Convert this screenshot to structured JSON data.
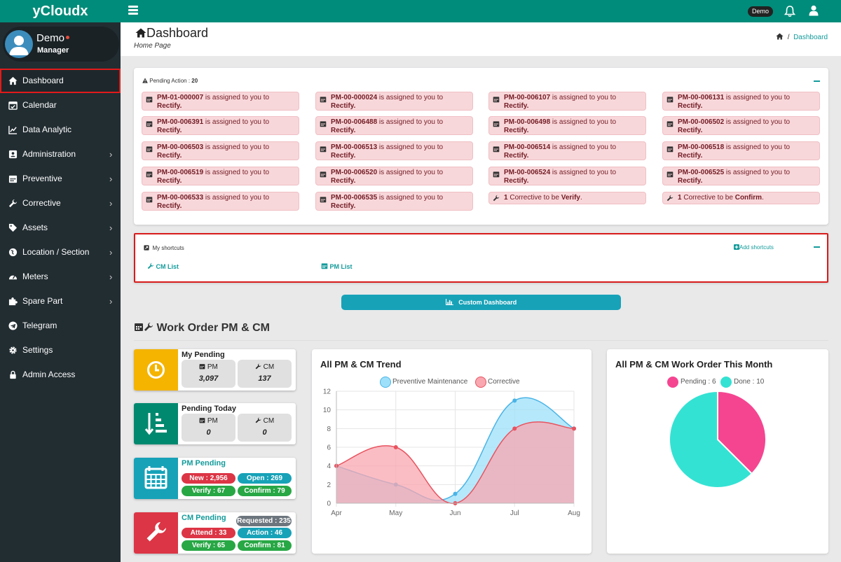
{
  "app": {
    "brand": "yCloudx",
    "demo_badge": "Demo"
  },
  "profile": {
    "name": "Demo",
    "role": "Manager"
  },
  "sidebar": {
    "items": [
      {
        "label": "Dashboard",
        "icon": "home-icon",
        "submenu": false,
        "active": true
      },
      {
        "label": "Calendar",
        "icon": "calendar-check-icon",
        "submenu": false
      },
      {
        "label": "Data Analytic",
        "icon": "line-chart-icon",
        "submenu": false
      },
      {
        "label": "Administration",
        "icon": "id-card-icon",
        "submenu": true
      },
      {
        "label": "Preventive",
        "icon": "calendar-icon",
        "submenu": true
      },
      {
        "label": "Corrective",
        "icon": "wrench-icon",
        "submenu": true
      },
      {
        "label": "Assets",
        "icon": "tag-icon",
        "submenu": true
      },
      {
        "label": "Location / Section",
        "icon": "globe-icon",
        "submenu": true
      },
      {
        "label": "Meters",
        "icon": "gauge-icon",
        "submenu": true
      },
      {
        "label": "Spare Part",
        "icon": "puzzle-icon",
        "submenu": true
      },
      {
        "label": "Telegram",
        "icon": "telegram-icon",
        "submenu": false
      },
      {
        "label": "Settings",
        "icon": "gear-icon",
        "submenu": false
      },
      {
        "label": "Admin Access",
        "icon": "lock-icon",
        "submenu": false
      }
    ]
  },
  "header": {
    "title": "Dashboard",
    "subtitle": "Home Page",
    "breadcrumb_sep": "/",
    "breadcrumb_current": "Dashboard"
  },
  "pending": {
    "label": "Pending Action : ",
    "count": "20",
    "assigned_suffix": " is assigned to you to",
    "rectify": "Rectify.",
    "items": [
      "PM-01-000007",
      "PM-00-000024",
      "PM-00-006107",
      "PM-00-006131",
      "PM-00-006391",
      "PM-00-006488",
      "PM-00-006498",
      "PM-00-006502",
      "PM-00-006503",
      "PM-00-006513",
      "PM-00-006514",
      "PM-00-006518",
      "PM-00-006519",
      "PM-00-006520",
      "PM-00-006524",
      "PM-00-006525",
      "PM-00-006533",
      "PM-00-006535"
    ],
    "corrective_verify": {
      "count": "1",
      "text": " Corrective to be ",
      "action": "Verify",
      "end": "."
    },
    "corrective_confirm": {
      "count": "1",
      "text": " Corrective to be ",
      "action": "Confirm",
      "end": "."
    }
  },
  "shortcuts": {
    "title": "My shortcuts",
    "add_label": "Add shortcuts",
    "items": [
      {
        "label": "CM List",
        "icon": "wrench-icon"
      },
      {
        "label": "PM List",
        "icon": "calendar-icon"
      }
    ]
  },
  "custom_dashboard": {
    "label": "Custom Dashboard"
  },
  "work_order": {
    "title": "Work Order PM & CM"
  },
  "stats": {
    "my_pending": {
      "title": "My Pending",
      "pm_label": "PM",
      "pm_value": "3,097",
      "cm_label": "CM",
      "cm_value": "137",
      "color": "#f4b400"
    },
    "pending_today": {
      "title": "Pending Today",
      "pm_label": "PM",
      "pm_value": "0",
      "cm_label": "CM",
      "cm_value": "0",
      "color": "#00896f"
    },
    "pm_pending": {
      "title": "PM Pending",
      "new": "New : 2,956",
      "open": "Open : 269",
      "verify": "Verify : 67",
      "confirm": "Confirm : 79",
      "color": "#17a2b8"
    },
    "cm_pending": {
      "title": "CM Pending",
      "requested": "Requested : 235",
      "attend": "Attend : 33",
      "action": "Action : 46",
      "verify": "Verify : 65",
      "confirm": "Confirm : 81",
      "color": "#dc3545"
    }
  },
  "chart_data": [
    {
      "type": "area",
      "title": "All PM & CM Trend",
      "categories": [
        "Apr",
        "May",
        "Jun",
        "Jul",
        "Aug"
      ],
      "ylim": [
        0,
        12
      ],
      "yticks": [
        "0",
        "2",
        "4",
        "6",
        "8",
        "10",
        "12"
      ],
      "grid": true,
      "legend": "top",
      "series": [
        {
          "name": "Preventive Maintenance",
          "values": [
            4,
            2,
            1,
            11,
            8
          ],
          "color": "#4ab4e6",
          "fill": "#9ee0fa"
        },
        {
          "name": "Corrective",
          "values": [
            4,
            6,
            0,
            8,
            8
          ],
          "color": "#e8535f",
          "fill": "#f9a7b0"
        }
      ]
    },
    {
      "type": "pie",
      "title": "All PM & CM Work Order This Month",
      "legend": "top",
      "slices": [
        {
          "name": "Pending",
          "legend_label": "Pending : 6",
          "value": 6,
          "color": "#f54591"
        },
        {
          "name": "Done",
          "legend_label": "Done : 10",
          "value": 10,
          "color": "#34e2d3"
        }
      ]
    }
  ]
}
